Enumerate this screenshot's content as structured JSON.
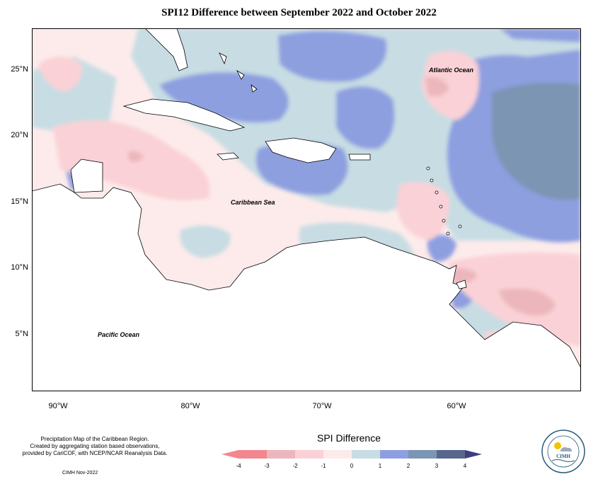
{
  "title": "SPI12 Difference between September 2022 and October 2022",
  "y_axis_labels": [
    "25°N",
    "20°N",
    "15°N",
    "10°N",
    "5°N"
  ],
  "x_axis_labels": [
    "90°W",
    "80°W",
    "70°W",
    "60°W"
  ],
  "map_labels": {
    "atlantic": "Atlantic Ocean",
    "caribbean": "Caribbean Sea",
    "pacific": "Pacific Ocean"
  },
  "footer": {
    "line1": "Precipitation Map of the Caribbean Region.",
    "line2": "Created by aggregating station based observations,",
    "line3": "provided by CariCOF, with NCEP/NCAR Reanalysis Data.",
    "date": "CIMH Nov-2022"
  },
  "legend": {
    "title": "SPI Difference",
    "ticks": [
      "-4",
      "-3",
      "-2",
      "-1",
      "0",
      "1",
      "2",
      "3",
      "4"
    ],
    "colors": [
      "#f4868f",
      "#ecb7bc",
      "#fad1d6",
      "#fdebeb",
      "#c7dde3",
      "#8e9fe0",
      "#7b95b3",
      "#58668e"
    ]
  },
  "logo": {
    "name": "CIMH"
  }
}
